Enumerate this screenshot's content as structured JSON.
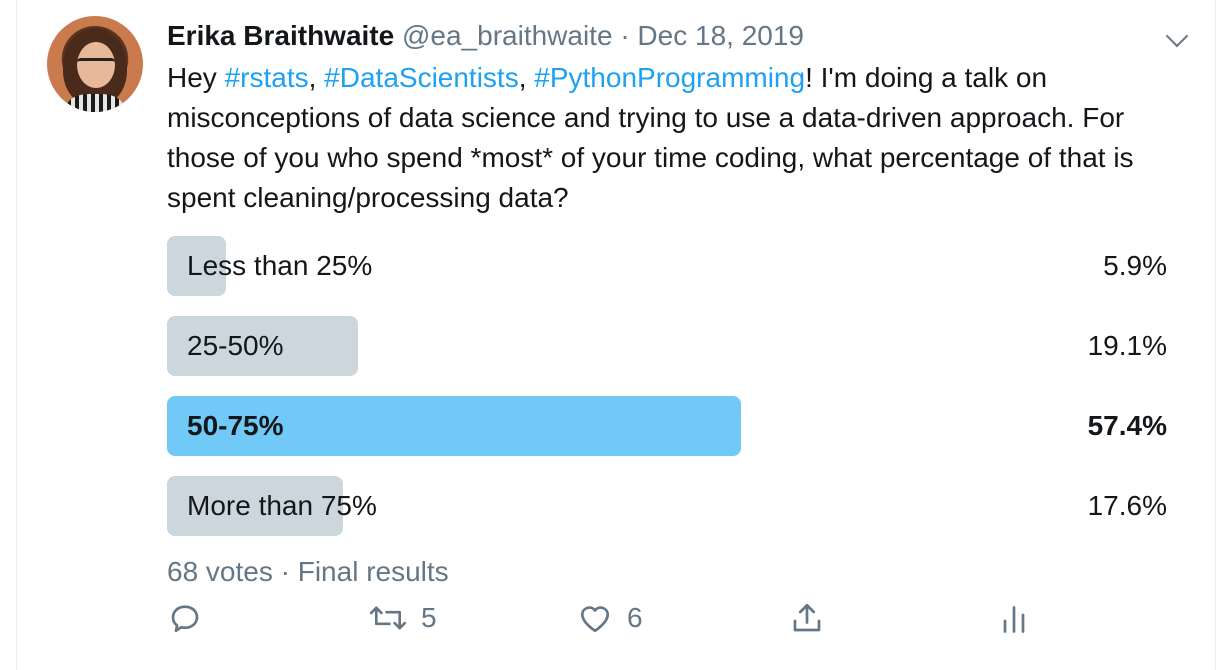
{
  "tweet": {
    "author_name": "Erika Braithwaite",
    "handle": "@ea_braithwaite",
    "separator": "·",
    "date": "Dec 18, 2019",
    "text": {
      "greeting": "Hey ",
      "hashtag1": "#rstats",
      "comma1": ", ",
      "hashtag2": "#DataScientists",
      "comma2": ", ",
      "hashtag3": "#PythonProgramming",
      "rest": "! I'm doing a talk on misconceptions of data science and trying to use a data-driven approach. For those of you who spend *most* of your time coding, what percentage of that is spent cleaning/processing data?"
    },
    "hashtag_color": "#1da1f2"
  },
  "poll": {
    "options": [
      {
        "label": "Less than 25%",
        "percent_text": "5.9%",
        "percent": 5.9,
        "winner": false
      },
      {
        "label": "25-50%",
        "percent_text": "19.1%",
        "percent": 19.1,
        "winner": false
      },
      {
        "label": "50-75%",
        "percent_text": "57.4%",
        "percent": 57.4,
        "winner": true
      },
      {
        "label": "More than 75%",
        "percent_text": "17.6%",
        "percent": 17.6,
        "winner": false
      }
    ],
    "summary": "68 votes · Final results",
    "bar_color": "#ccd6dd",
    "winner_color": "#71c9f8"
  },
  "actions": {
    "reply": {
      "icon": "reply-icon"
    },
    "retweet": {
      "icon": "retweet-icon",
      "count": "5"
    },
    "like": {
      "icon": "heart-icon",
      "count": "6"
    },
    "share": {
      "icon": "share-icon"
    },
    "analytics": {
      "icon": "analytics-icon"
    }
  }
}
